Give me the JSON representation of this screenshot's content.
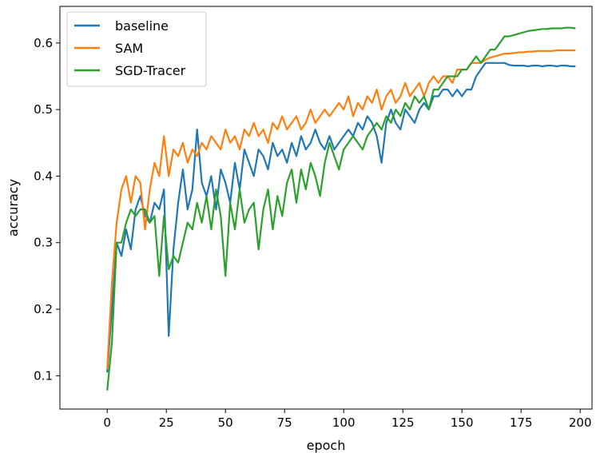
{
  "chart_data": {
    "type": "line",
    "xlabel": "epoch",
    "ylabel": "accuracy",
    "xlim": [
      -20,
      205
    ],
    "ylim": [
      0.05,
      0.655
    ],
    "xticks": [
      0,
      25,
      50,
      75,
      100,
      125,
      150,
      175,
      200
    ],
    "yticks": [
      0.1,
      0.2,
      0.3,
      0.4,
      0.5,
      0.6
    ],
    "grid": false,
    "legend_position": "top-left",
    "series": [
      {
        "name": "baseline",
        "color": "#1f77b4",
        "x": [
          0,
          2,
          4,
          6,
          8,
          10,
          12,
          14,
          16,
          18,
          20,
          22,
          24,
          26,
          28,
          30,
          32,
          34,
          36,
          38,
          40,
          42,
          44,
          46,
          48,
          50,
          52,
          54,
          56,
          58,
          60,
          62,
          64,
          66,
          68,
          70,
          72,
          74,
          76,
          78,
          80,
          82,
          84,
          86,
          88,
          90,
          92,
          94,
          96,
          98,
          100,
          102,
          104,
          106,
          108,
          110,
          112,
          114,
          116,
          118,
          120,
          122,
          124,
          126,
          128,
          130,
          132,
          134,
          136,
          138,
          140,
          142,
          144,
          146,
          148,
          150,
          152,
          154,
          156,
          158,
          160,
          162,
          164,
          166,
          168,
          170,
          172,
          174,
          176,
          178,
          180,
          182,
          184,
          186,
          188,
          190,
          192,
          194,
          196,
          198
        ],
        "values": [
          0.105,
          0.2,
          0.3,
          0.28,
          0.32,
          0.29,
          0.35,
          0.37,
          0.34,
          0.33,
          0.36,
          0.35,
          0.38,
          0.16,
          0.29,
          0.36,
          0.41,
          0.35,
          0.38,
          0.47,
          0.39,
          0.37,
          0.4,
          0.35,
          0.41,
          0.39,
          0.36,
          0.42,
          0.38,
          0.44,
          0.42,
          0.4,
          0.44,
          0.43,
          0.41,
          0.45,
          0.43,
          0.44,
          0.42,
          0.45,
          0.43,
          0.46,
          0.44,
          0.45,
          0.47,
          0.45,
          0.44,
          0.46,
          0.44,
          0.45,
          0.46,
          0.47,
          0.46,
          0.48,
          0.47,
          0.49,
          0.48,
          0.46,
          0.42,
          0.48,
          0.5,
          0.48,
          0.47,
          0.5,
          0.49,
          0.48,
          0.5,
          0.51,
          0.5,
          0.52,
          0.52,
          0.53,
          0.53,
          0.52,
          0.53,
          0.52,
          0.53,
          0.53,
          0.55,
          0.56,
          0.57,
          0.57,
          0.57,
          0.57,
          0.57,
          0.567,
          0.566,
          0.566,
          0.566,
          0.565,
          0.566,
          0.566,
          0.565,
          0.566,
          0.566,
          0.565,
          0.566,
          0.566,
          0.565,
          0.565
        ]
      },
      {
        "name": "SAM",
        "color": "#ff7f0e",
        "x": [
          0,
          2,
          4,
          6,
          8,
          10,
          12,
          14,
          16,
          18,
          20,
          22,
          24,
          26,
          28,
          30,
          32,
          34,
          36,
          38,
          40,
          42,
          44,
          46,
          48,
          50,
          52,
          54,
          56,
          58,
          60,
          62,
          64,
          66,
          68,
          70,
          72,
          74,
          76,
          78,
          80,
          82,
          84,
          86,
          88,
          90,
          92,
          94,
          96,
          98,
          100,
          102,
          104,
          106,
          108,
          110,
          112,
          114,
          116,
          118,
          120,
          122,
          124,
          126,
          128,
          130,
          132,
          134,
          136,
          138,
          140,
          142,
          144,
          146,
          148,
          150,
          152,
          154,
          156,
          158,
          160,
          162,
          164,
          166,
          168,
          170,
          172,
          174,
          176,
          178,
          180,
          182,
          184,
          186,
          188,
          190,
          192,
          194,
          196,
          198
        ],
        "values": [
          0.11,
          0.24,
          0.33,
          0.38,
          0.4,
          0.36,
          0.4,
          0.39,
          0.32,
          0.38,
          0.42,
          0.4,
          0.46,
          0.4,
          0.44,
          0.43,
          0.45,
          0.42,
          0.44,
          0.43,
          0.45,
          0.44,
          0.46,
          0.45,
          0.44,
          0.47,
          0.45,
          0.46,
          0.44,
          0.47,
          0.46,
          0.48,
          0.46,
          0.47,
          0.45,
          0.48,
          0.47,
          0.49,
          0.47,
          0.48,
          0.49,
          0.47,
          0.48,
          0.5,
          0.48,
          0.49,
          0.5,
          0.49,
          0.5,
          0.51,
          0.5,
          0.52,
          0.49,
          0.51,
          0.5,
          0.52,
          0.51,
          0.53,
          0.5,
          0.52,
          0.53,
          0.51,
          0.52,
          0.54,
          0.52,
          0.53,
          0.54,
          0.52,
          0.54,
          0.55,
          0.54,
          0.55,
          0.55,
          0.54,
          0.56,
          0.56,
          0.56,
          0.57,
          0.57,
          0.57,
          0.575,
          0.578,
          0.58,
          0.582,
          0.584,
          0.584,
          0.585,
          0.586,
          0.586,
          0.587,
          0.587,
          0.588,
          0.588,
          0.588,
          0.588,
          0.589,
          0.589,
          0.589,
          0.589,
          0.589
        ]
      },
      {
        "name": "SGD-Tracer",
        "color": "#2ca02c",
        "x": [
          0,
          2,
          4,
          6,
          8,
          10,
          12,
          14,
          16,
          18,
          20,
          22,
          24,
          26,
          28,
          30,
          32,
          34,
          36,
          38,
          40,
          42,
          44,
          46,
          48,
          50,
          52,
          54,
          56,
          58,
          60,
          62,
          64,
          66,
          68,
          70,
          72,
          74,
          76,
          78,
          80,
          82,
          84,
          86,
          88,
          90,
          92,
          94,
          96,
          98,
          100,
          102,
          104,
          106,
          108,
          110,
          112,
          114,
          116,
          118,
          120,
          122,
          124,
          126,
          128,
          130,
          132,
          134,
          136,
          138,
          140,
          142,
          144,
          146,
          148,
          150,
          152,
          154,
          156,
          158,
          160,
          162,
          164,
          166,
          168,
          170,
          172,
          174,
          176,
          178,
          180,
          182,
          184,
          186,
          188,
          190,
          192,
          194,
          196,
          198
        ],
        "values": [
          0.078,
          0.15,
          0.3,
          0.3,
          0.33,
          0.35,
          0.34,
          0.35,
          0.35,
          0.33,
          0.34,
          0.25,
          0.34,
          0.26,
          0.28,
          0.27,
          0.3,
          0.33,
          0.32,
          0.36,
          0.33,
          0.37,
          0.32,
          0.38,
          0.34,
          0.25,
          0.36,
          0.32,
          0.38,
          0.33,
          0.35,
          0.36,
          0.29,
          0.35,
          0.38,
          0.32,
          0.37,
          0.34,
          0.39,
          0.41,
          0.36,
          0.41,
          0.38,
          0.42,
          0.4,
          0.37,
          0.42,
          0.45,
          0.43,
          0.41,
          0.44,
          0.45,
          0.46,
          0.45,
          0.44,
          0.46,
          0.47,
          0.48,
          0.47,
          0.49,
          0.48,
          0.5,
          0.49,
          0.51,
          0.5,
          0.52,
          0.51,
          0.52,
          0.5,
          0.53,
          0.53,
          0.54,
          0.55,
          0.55,
          0.55,
          0.56,
          0.56,
          0.57,
          0.58,
          0.57,
          0.58,
          0.59,
          0.59,
          0.6,
          0.61,
          0.61,
          0.612,
          0.614,
          0.616,
          0.618,
          0.619,
          0.62,
          0.621,
          0.621,
          0.622,
          0.622,
          0.622,
          0.623,
          0.623,
          0.622
        ]
      }
    ]
  }
}
